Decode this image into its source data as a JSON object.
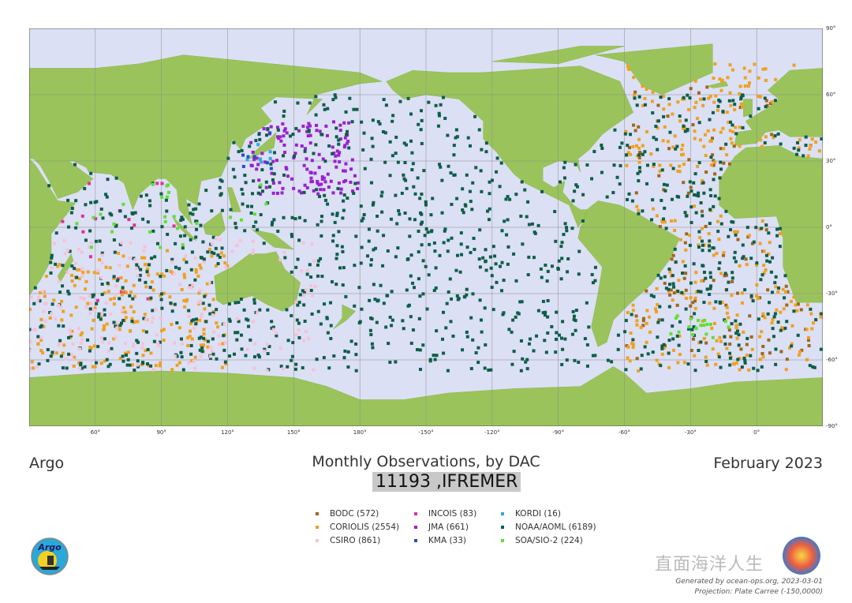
{
  "map": {
    "projection_center_lon": -150,
    "lon_ticks": [
      "60°",
      "90°",
      "120°",
      "150°",
      "180°",
      "-150°",
      "-120°",
      "-90°",
      "-60°",
      "-30°",
      "0°"
    ],
    "lat_ticks": [
      "90°",
      "60°",
      "30°",
      "0°",
      "-30°",
      "-60°",
      "-90°"
    ],
    "colors": {
      "ocean": "#dce0f4",
      "land": "#9ac45b",
      "border": "#555555"
    }
  },
  "header": {
    "left": "Argo",
    "title": "Monthly Observations, by DAC",
    "subtitle": "11193 ,IFREMER",
    "date": "February 2023"
  },
  "legend": [
    {
      "label": "BODC (572)",
      "color": "#a0661a",
      "count": 572
    },
    {
      "label": "INCOIS (83)",
      "color": "#e0309a",
      "count": 83
    },
    {
      "label": "KORDI (16)",
      "color": "#30a8e0",
      "count": 16
    },
    {
      "label": "CORIOLIS (2554)",
      "color": "#f0a020",
      "count": 2554
    },
    {
      "label": "JMA (661)",
      "color": "#9a20d0",
      "count": 661
    },
    {
      "label": "NOAA/AOML (6189)",
      "color": "#0c5e48",
      "count": 6189
    },
    {
      "label": "CSIRO (861)",
      "color": "#f8c0d8",
      "count": 861
    },
    {
      "label": "KMA (33)",
      "color": "#2050c0",
      "count": 33
    },
    {
      "label": "SOA/SIO-2 (224)",
      "color": "#60e030",
      "count": 224
    }
  ],
  "logo": {
    "text": "Argo"
  },
  "watermark": "直面海洋人生",
  "footer": {
    "generated": "Generated by ocean-ops.org, 2023-03-01",
    "projection": "Projection: Plate Carree (-150,0000)"
  }
}
